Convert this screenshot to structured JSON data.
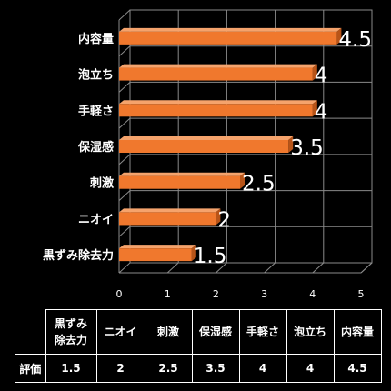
{
  "chart_data": {
    "type": "bar",
    "orientation": "horizontal",
    "categories": [
      "内容量",
      "泡立ち",
      "手軽さ",
      "保湿感",
      "刺激",
      "ニオイ",
      "黒ずみ除去力"
    ],
    "values": [
      4.5,
      4,
      4,
      3.5,
      2.5,
      2,
      1.5
    ],
    "data_labels": [
      "4.5",
      "4",
      "4",
      "3.5",
      "2.5",
      "2",
      "1.5"
    ],
    "xlim": [
      0,
      5
    ],
    "x_ticks": [
      "0",
      "1",
      "2",
      "3",
      "4",
      "5"
    ],
    "grid": true,
    "bar_color": "#F0782D"
  },
  "table": {
    "row_label": "評価",
    "columns": [
      {
        "label": "黒ずみ除去力",
        "value": "1.5"
      },
      {
        "label": "ニオイ",
        "value": "2"
      },
      {
        "label": "刺激",
        "value": "2.5"
      },
      {
        "label": "保湿感",
        "value": "3.5"
      },
      {
        "label": "手軽さ",
        "value": "4"
      },
      {
        "label": "泡立ち",
        "value": "4"
      },
      {
        "label": "内容量",
        "value": "4.5"
      }
    ]
  }
}
